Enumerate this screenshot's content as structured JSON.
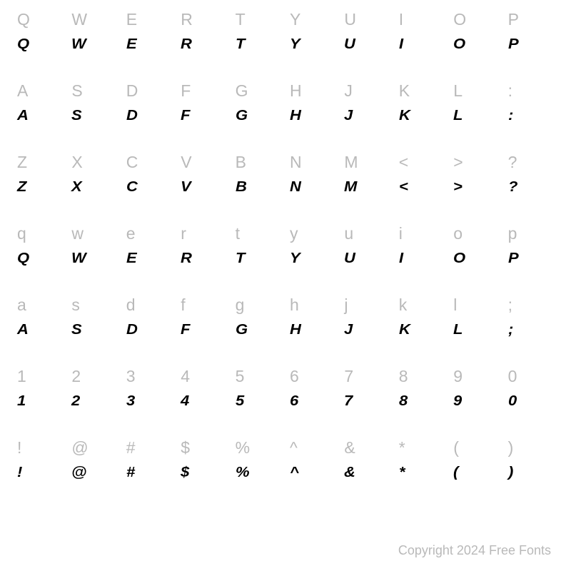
{
  "grid": {
    "rows": [
      {
        "ref": [
          "Q",
          "W",
          "E",
          "R",
          "T",
          "Y",
          "U",
          "I",
          "O",
          "P"
        ],
        "glyph": [
          "Q",
          "W",
          "E",
          "R",
          "T",
          "Y",
          "U",
          "I",
          "O",
          "P"
        ]
      },
      {
        "ref": [
          "A",
          "S",
          "D",
          "F",
          "G",
          "H",
          "J",
          "K",
          "L",
          ":"
        ],
        "glyph": [
          "A",
          "S",
          "D",
          "F",
          "G",
          "H",
          "J",
          "K",
          "L",
          ":"
        ]
      },
      {
        "ref": [
          "Z",
          "X",
          "C",
          "V",
          "B",
          "N",
          "M",
          "<",
          ">",
          "?"
        ],
        "glyph": [
          "Z",
          "X",
          "C",
          "V",
          "B",
          "N",
          "M",
          "<",
          ">",
          "?"
        ]
      },
      {
        "ref": [
          "q",
          "w",
          "e",
          "r",
          "t",
          "y",
          "u",
          "i",
          "o",
          "p"
        ],
        "glyph": [
          "Q",
          "W",
          "E",
          "R",
          "T",
          "Y",
          "U",
          "I",
          "O",
          "P"
        ]
      },
      {
        "ref": [
          "a",
          "s",
          "d",
          "f",
          "g",
          "h",
          "j",
          "k",
          "l",
          ";"
        ],
        "glyph": [
          "A",
          "S",
          "D",
          "F",
          "G",
          "H",
          "J",
          "K",
          "L",
          ";"
        ]
      },
      {
        "ref": [
          "1",
          "2",
          "3",
          "4",
          "5",
          "6",
          "7",
          "8",
          "9",
          "0"
        ],
        "glyph": [
          "1",
          "2",
          "3",
          "4",
          "5",
          "6",
          "7",
          "8",
          "9",
          "0"
        ]
      },
      {
        "ref": [
          "!",
          "@",
          "#",
          "$",
          "%",
          "^",
          "&",
          "*",
          "(",
          ")"
        ],
        "glyph": [
          "!",
          "@",
          "#",
          "$",
          "%",
          "^",
          "&",
          "*",
          "(",
          ")"
        ]
      }
    ],
    "columns": 10,
    "ref_color": "#b9b9b9",
    "glyph_color": "#000000",
    "background_color": "#ffffff",
    "ref_fontsize": 23,
    "glyph_fontsize": 20,
    "ref_fontweight": 400,
    "glyph_fontweight": 900
  },
  "copyright": "Copyright 2024 Free Fonts"
}
